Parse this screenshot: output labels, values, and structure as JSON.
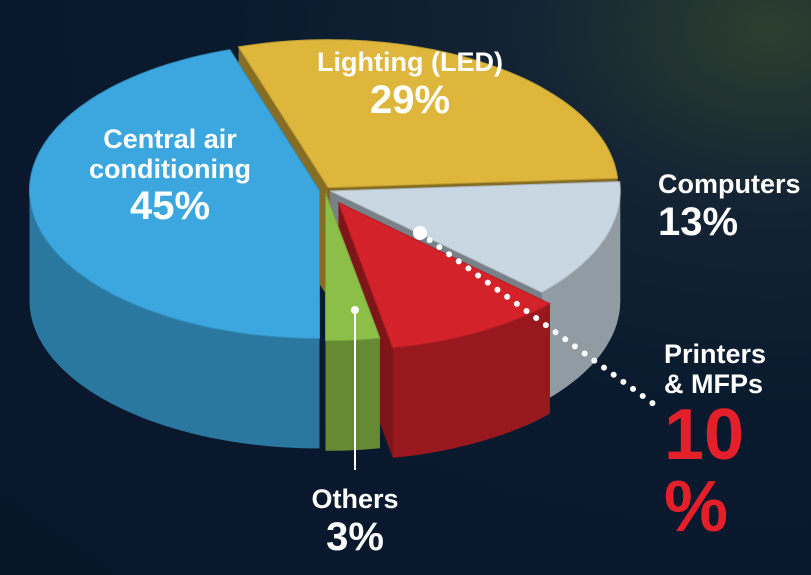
{
  "chart_data": {
    "type": "pie3d",
    "categories": [
      "Central air conditioning",
      "Lighting (LED)",
      "Computers",
      "Printers & MFPs",
      "Others"
    ],
    "values": [
      45,
      29,
      13,
      10,
      3
    ],
    "value_labels": [
      "45%",
      "29%",
      "13%",
      "10 %",
      "3%"
    ],
    "colors": [
      "#3ba7de",
      "#ddb63b",
      "#c9d7e3",
      "#d3222a",
      "#8cbf47"
    ]
  }
}
